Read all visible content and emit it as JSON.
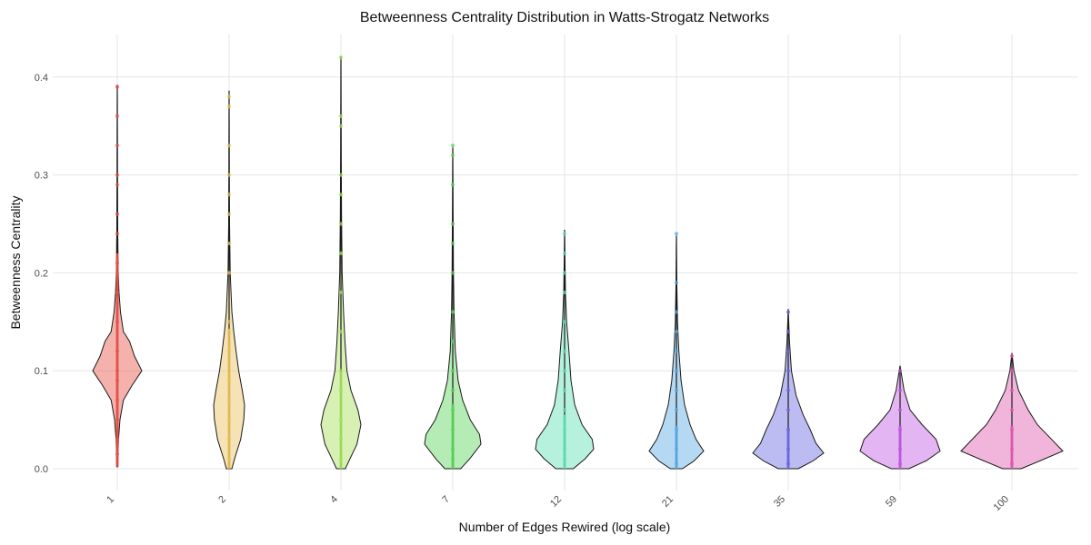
{
  "chart_data": {
    "type": "violin",
    "title": "Betweenness Centrality Distribution in Watts-Strogatz Networks",
    "xlabel": "Number of Edges Rewired (log scale)",
    "ylabel": "Betweenness Centrality",
    "ylim": [
      0.0,
      0.44
    ],
    "yticks": [
      0.0,
      0.1,
      0.2,
      0.3,
      0.4
    ],
    "ytick_labels": [
      "0.0",
      "0.1",
      "0.2",
      "0.3",
      "0.4"
    ],
    "x_scale": "log",
    "grid": true,
    "legend": "none",
    "categories": [
      "1",
      "2",
      "4",
      "7",
      "12",
      "21",
      "35",
      "59",
      "100"
    ],
    "series": [
      {
        "category": "1",
        "color": "#e8544a",
        "min": 0.002,
        "max": 0.392,
        "median": 0.1,
        "density": [
          [
            0.002,
            0.02
          ],
          [
            0.015,
            0.03
          ],
          [
            0.03,
            0.05
          ],
          [
            0.05,
            0.11
          ],
          [
            0.07,
            0.25
          ],
          [
            0.085,
            0.6
          ],
          [
            0.1,
            1.0
          ],
          [
            0.115,
            0.7
          ],
          [
            0.13,
            0.5
          ],
          [
            0.14,
            0.25
          ],
          [
            0.16,
            0.13
          ],
          [
            0.18,
            0.07
          ],
          [
            0.2,
            0.04
          ],
          [
            0.24,
            0.02
          ],
          [
            0.3,
            0.01
          ],
          [
            0.392,
            0.0
          ]
        ],
        "points": [
          0.015,
          0.03,
          0.05,
          0.07,
          0.09,
          0.1,
          0.12,
          0.15,
          0.18,
          0.21,
          0.24,
          0.26,
          0.29,
          0.3,
          0.33,
          0.36,
          0.39
        ]
      },
      {
        "category": "2",
        "color": "#e8c15a",
        "min": 0.0,
        "max": 0.386,
        "median": 0.065,
        "density": [
          [
            0.0,
            0.18
          ],
          [
            0.01,
            0.35
          ],
          [
            0.03,
            0.75
          ],
          [
            0.05,
            0.95
          ],
          [
            0.065,
            1.0
          ],
          [
            0.08,
            0.85
          ],
          [
            0.1,
            0.62
          ],
          [
            0.12,
            0.45
          ],
          [
            0.14,
            0.3
          ],
          [
            0.16,
            0.18
          ],
          [
            0.2,
            0.07
          ],
          [
            0.25,
            0.03
          ],
          [
            0.3,
            0.015
          ],
          [
            0.386,
            0.0
          ]
        ],
        "points": [
          0.01,
          0.03,
          0.05,
          0.07,
          0.09,
          0.12,
          0.15,
          0.2,
          0.23,
          0.26,
          0.28,
          0.3,
          0.33,
          0.37,
          0.38
        ]
      },
      {
        "category": "4",
        "color": "#a6e05c",
        "min": 0.0,
        "max": 0.421,
        "median": 0.045,
        "density": [
          [
            0.0,
            0.22
          ],
          [
            0.01,
            0.45
          ],
          [
            0.025,
            0.8
          ],
          [
            0.045,
            1.0
          ],
          [
            0.06,
            0.85
          ],
          [
            0.08,
            0.5
          ],
          [
            0.1,
            0.3
          ],
          [
            0.13,
            0.2
          ],
          [
            0.16,
            0.13
          ],
          [
            0.2,
            0.06
          ],
          [
            0.26,
            0.03
          ],
          [
            0.32,
            0.015
          ],
          [
            0.421,
            0.0
          ]
        ],
        "points": [
          0.01,
          0.03,
          0.05,
          0.08,
          0.1,
          0.14,
          0.18,
          0.22,
          0.25,
          0.28,
          0.3,
          0.35,
          0.36,
          0.42
        ]
      },
      {
        "category": "7",
        "color": "#5bd45b",
        "min": 0.0,
        "max": 0.328,
        "median": 0.03,
        "density": [
          [
            0.0,
            0.28
          ],
          [
            0.01,
            0.6
          ],
          [
            0.025,
            1.0
          ],
          [
            0.035,
            0.95
          ],
          [
            0.05,
            0.62
          ],
          [
            0.07,
            0.35
          ],
          [
            0.09,
            0.19
          ],
          [
            0.12,
            0.09
          ],
          [
            0.16,
            0.045
          ],
          [
            0.2,
            0.025
          ],
          [
            0.26,
            0.012
          ],
          [
            0.328,
            0.0
          ]
        ],
        "points": [
          0.01,
          0.02,
          0.04,
          0.06,
          0.08,
          0.1,
          0.13,
          0.16,
          0.2,
          0.23,
          0.25,
          0.29,
          0.32,
          0.33
        ]
      },
      {
        "category": "12",
        "color": "#5ee0b6",
        "min": 0.0,
        "max": 0.244,
        "median": 0.025,
        "density": [
          [
            0.0,
            0.3
          ],
          [
            0.01,
            0.7
          ],
          [
            0.02,
            1.0
          ],
          [
            0.03,
            0.95
          ],
          [
            0.045,
            0.6
          ],
          [
            0.065,
            0.35
          ],
          [
            0.09,
            0.22
          ],
          [
            0.12,
            0.15
          ],
          [
            0.15,
            0.07
          ],
          [
            0.18,
            0.03
          ],
          [
            0.21,
            0.015
          ],
          [
            0.244,
            0.0
          ]
        ],
        "points": [
          0.01,
          0.02,
          0.04,
          0.06,
          0.08,
          0.1,
          0.12,
          0.15,
          0.18,
          0.2,
          0.22,
          0.24
        ]
      },
      {
        "category": "21",
        "color": "#5aabe3",
        "min": 0.0,
        "max": 0.238,
        "median": 0.02,
        "density": [
          [
            0.0,
            0.22
          ],
          [
            0.008,
            0.65
          ],
          [
            0.018,
            1.0
          ],
          [
            0.03,
            0.72
          ],
          [
            0.045,
            0.5
          ],
          [
            0.065,
            0.3
          ],
          [
            0.09,
            0.17
          ],
          [
            0.12,
            0.09
          ],
          [
            0.15,
            0.04
          ],
          [
            0.19,
            0.015
          ],
          [
            0.238,
            0.0
          ]
        ],
        "points": [
          0.005,
          0.02,
          0.04,
          0.06,
          0.08,
          0.1,
          0.12,
          0.14,
          0.16,
          0.19,
          0.24
        ]
      },
      {
        "category": "35",
        "color": "#6a6ae3",
        "min": 0.0,
        "max": 0.163,
        "median": 0.018,
        "density": [
          [
            0.0,
            0.28
          ],
          [
            0.008,
            0.7
          ],
          [
            0.016,
            1.0
          ],
          [
            0.026,
            0.78
          ],
          [
            0.04,
            0.62
          ],
          [
            0.055,
            0.42
          ],
          [
            0.075,
            0.22
          ],
          [
            0.1,
            0.09
          ],
          [
            0.13,
            0.035
          ],
          [
            0.163,
            0.0
          ]
        ],
        "points": [
          0.005,
          0.02,
          0.04,
          0.06,
          0.08,
          0.1,
          0.12,
          0.14,
          0.16
        ]
      },
      {
        "category": "59",
        "color": "#c05ae3",
        "min": 0.0,
        "max": 0.105,
        "median": 0.02,
        "density": [
          [
            0.0,
            0.22
          ],
          [
            0.008,
            0.65
          ],
          [
            0.018,
            1.0
          ],
          [
            0.03,
            0.9
          ],
          [
            0.045,
            0.55
          ],
          [
            0.06,
            0.25
          ],
          [
            0.08,
            0.1
          ],
          [
            0.105,
            0.0
          ]
        ],
        "points": [
          0.005,
          0.02,
          0.04,
          0.06,
          0.08,
          0.1
        ]
      },
      {
        "category": "100",
        "color": "#e05ab0",
        "min": 0.0,
        "max": 0.118,
        "median": 0.02,
        "density": [
          [
            0.0,
            0.18
          ],
          [
            0.008,
            0.55
          ],
          [
            0.018,
            1.0
          ],
          [
            0.03,
            0.78
          ],
          [
            0.045,
            0.5
          ],
          [
            0.06,
            0.32
          ],
          [
            0.08,
            0.13
          ],
          [
            0.1,
            0.04
          ],
          [
            0.118,
            0.0
          ]
        ],
        "points": [
          0.005,
          0.02,
          0.04,
          0.06,
          0.08,
          0.1,
          0.115
        ]
      }
    ]
  }
}
